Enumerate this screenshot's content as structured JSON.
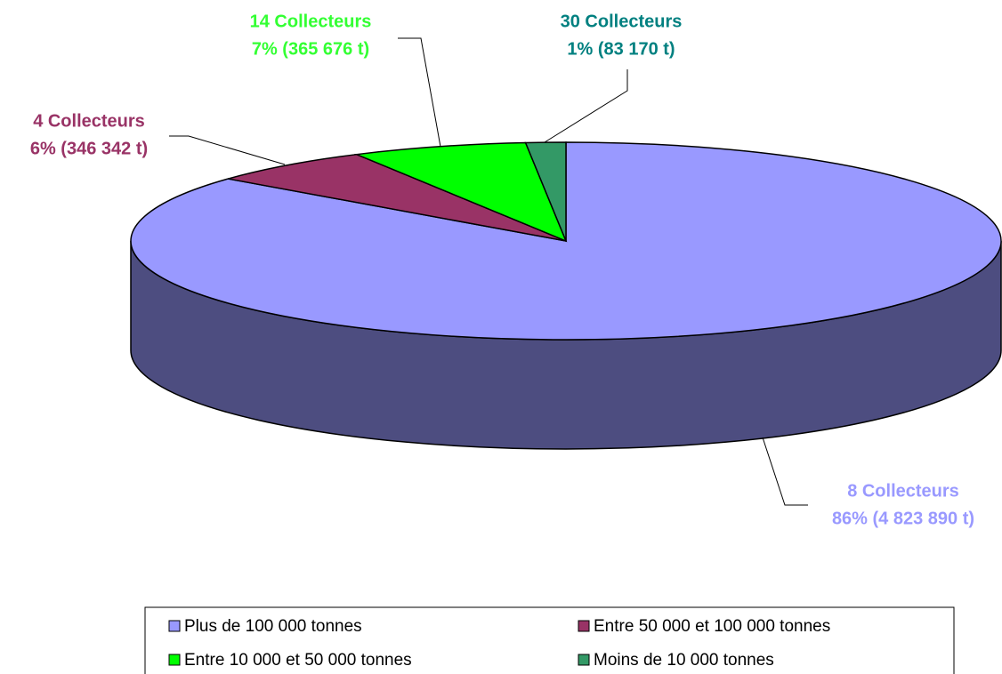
{
  "chart_data": {
    "type": "pie3d",
    "categories": [
      "Plus de 100 000 tonnes",
      "Entre 50 000 et 100 000 tonnes",
      "Entre 10 000 et 50 000 tonnes",
      "Moins de 10 000 tonnes"
    ],
    "values": [
      4823890,
      346342,
      365676,
      83170
    ],
    "value_labels": [
      "86% (4 823 890 t)",
      "6% (346 342 t)",
      "7% (365 676 t)",
      "1% (83 170 t)"
    ],
    "collector_labels": [
      "8 Collecteurs",
      "4 Collecteurs",
      "14 Collecteurs",
      "30 Collecteurs"
    ],
    "colors": [
      "#9999ff",
      "#993366",
      "#00ff00",
      "#339966"
    ],
    "label_colors": [
      "#9999ff",
      "#993366",
      "#33ff33",
      "#008080"
    ],
    "legend": "bottom"
  }
}
